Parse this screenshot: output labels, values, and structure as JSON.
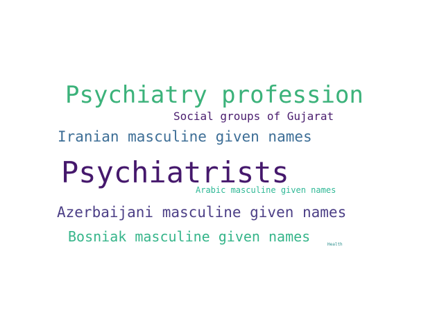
{
  "words": [
    {
      "text": "Psychiatry profession",
      "color": "#3bb27a"
    },
    {
      "text": "Social groups of Gujarat",
      "color": "#4a1d6e"
    },
    {
      "text": "Iranian masculine given names",
      "color": "#3d6e96"
    },
    {
      "text": "Psychiatrists",
      "color": "#45186c"
    },
    {
      "text": "Arabic masculine given names",
      "color": "#2fb896"
    },
    {
      "text": "Azerbaijani masculine given names",
      "color": "#4c3f86"
    },
    {
      "text": "Bosniak masculine given names",
      "color": "#36b58a"
    },
    {
      "text": "Health",
      "color": "#2a8e8c"
    }
  ]
}
